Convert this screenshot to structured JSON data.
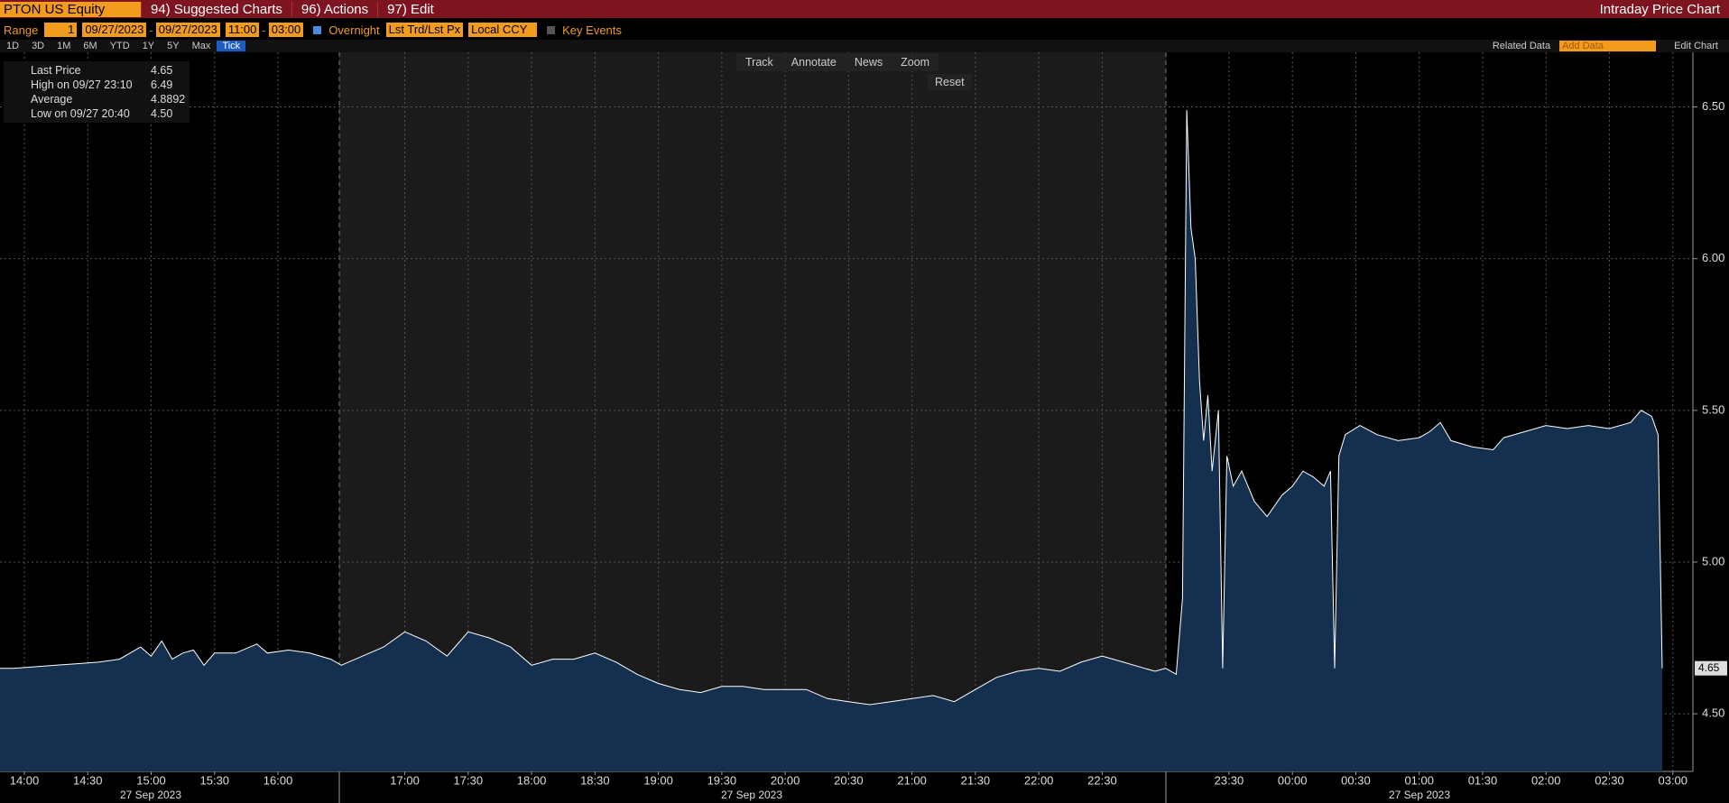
{
  "ui": {
    "ticker": "PTON US Equity",
    "menus": [
      "94) Suggested Charts",
      "96) Actions",
      "97) Edit"
    ],
    "page_title": "Intraday Price Chart",
    "range_label": "Range",
    "range_count": "1",
    "start_date": "09/27/2023",
    "end_date": "09/27/2023",
    "start_time": "11:00",
    "end_time": "03:00",
    "overnight": "Overnight",
    "price_field": "Lst Trd/Lst Px",
    "currency": "Local CCY",
    "key_events": "Key Events",
    "periods": [
      "1D",
      "3D",
      "1M",
      "6M",
      "YTD",
      "1Y",
      "5Y",
      "Max"
    ],
    "tick": "Tick",
    "related_data": "Related Data",
    "add_data": "Add Data",
    "edit_chart": "Edit Chart",
    "tools": [
      "Track",
      "Annotate",
      "News",
      "Zoom"
    ],
    "reset": "Reset"
  },
  "chart_data": {
    "type": "area",
    "x": [
      "13:48",
      "13:55",
      "14:05",
      "14:15",
      "14:25",
      "14:35",
      "14:45",
      "14:55",
      "15:00",
      "15:05",
      "15:10",
      "15:15",
      "15:20",
      "15:25",
      "15:30",
      "15:40",
      "15:50",
      "15:55",
      "16:05",
      "16:15",
      "16:25",
      "16:30",
      "16:40",
      "16:50",
      "17:00",
      "17:10",
      "17:20",
      "17:30",
      "17:40",
      "17:50",
      "18:00",
      "18:10",
      "18:20",
      "18:30",
      "18:40",
      "18:50",
      "19:00",
      "19:10",
      "19:20",
      "19:30",
      "19:40",
      "19:50",
      "20:00",
      "20:10",
      "20:20",
      "20:30",
      "20:40",
      "20:50",
      "21:00",
      "21:10",
      "21:20",
      "21:30",
      "21:40",
      "21:50",
      "22:00",
      "22:10",
      "22:20",
      "22:30",
      "22:40",
      "22:50",
      "22:55",
      "23:00",
      "23:05",
      "23:08",
      "23:10",
      "23:12",
      "23:14",
      "23:16",
      "23:18",
      "23:20",
      "23:22",
      "23:25",
      "23:27",
      "23:29",
      "23:32",
      "23:36",
      "23:42",
      "23:48",
      "23:55",
      "00:00",
      "00:05",
      "00:10",
      "00:15",
      "00:18",
      "00:20",
      "00:22",
      "00:25",
      "00:32",
      "00:40",
      "00:50",
      "01:00",
      "01:05",
      "01:10",
      "01:15",
      "01:25",
      "01:35",
      "01:40",
      "01:50",
      "02:00",
      "02:10",
      "02:20",
      "02:30",
      "02:40",
      "02:45",
      "02:50",
      "02:53",
      "02:55"
    ],
    "values": [
      4.65,
      4.65,
      4.655,
      4.66,
      4.665,
      4.67,
      4.68,
      4.72,
      4.69,
      4.74,
      4.68,
      4.7,
      4.71,
      4.66,
      4.7,
      4.7,
      4.73,
      4.7,
      4.71,
      4.7,
      4.68,
      4.66,
      4.69,
      4.72,
      4.77,
      4.74,
      4.69,
      4.77,
      4.75,
      4.72,
      4.66,
      4.68,
      4.68,
      4.7,
      4.67,
      4.63,
      4.6,
      4.58,
      4.57,
      4.59,
      4.59,
      4.58,
      4.58,
      4.58,
      4.55,
      4.54,
      4.53,
      4.54,
      4.55,
      4.56,
      4.54,
      4.58,
      4.62,
      4.64,
      4.65,
      4.64,
      4.67,
      4.69,
      4.67,
      4.65,
      4.64,
      4.65,
      4.63,
      4.88,
      6.49,
      6.1,
      6.0,
      5.6,
      5.4,
      5.55,
      5.3,
      5.5,
      4.65,
      5.35,
      5.25,
      5.3,
      5.2,
      5.15,
      5.22,
      5.25,
      5.3,
      5.28,
      5.25,
      5.3,
      4.65,
      5.35,
      5.42,
      5.45,
      5.42,
      5.4,
      5.41,
      5.43,
      5.46,
      5.4,
      5.38,
      5.37,
      5.41,
      5.43,
      5.45,
      5.44,
      5.45,
      5.44,
      5.46,
      5.5,
      5.48,
      5.42,
      4.65
    ],
    "color": "#ffffff",
    "fill": "#15304f",
    "grid": true,
    "ylim": [
      4.31,
      6.68
    ],
    "yticks": [
      {
        "value": 4.5,
        "label": "4.50"
      },
      {
        "value": 5,
        "label": "5.00"
      },
      {
        "value": 5.5,
        "label": "5.50"
      },
      {
        "value": 6,
        "label": "6.00"
      },
      {
        "value": 6.5,
        "label": "6.50"
      }
    ],
    "xticks": [
      "14:00",
      "14:30",
      "15:00",
      "15:30",
      "16:00",
      "17:00",
      "17:30",
      "18:00",
      "18:30",
      "19:00",
      "19:30",
      "20:00",
      "20:30",
      "21:00",
      "21:30",
      "22:00",
      "22:30",
      "23:30",
      "00:00",
      "00:30",
      "01:00",
      "01:30",
      "02:00",
      "02:30",
      "03:00"
    ],
    "date_labels": [
      "27 Sep 2023",
      "27 Sep 2023",
      "27 Sep 2023"
    ],
    "legend": [
      {
        "label": "Last Price",
        "value": "4.65"
      },
      {
        "label": "High on 09/27 23:10",
        "value": "6.49"
      },
      {
        "label": "Average",
        "value": "4.8892"
      },
      {
        "label": "Low on 09/27 20:40",
        "value": "4.50"
      }
    ]
  }
}
